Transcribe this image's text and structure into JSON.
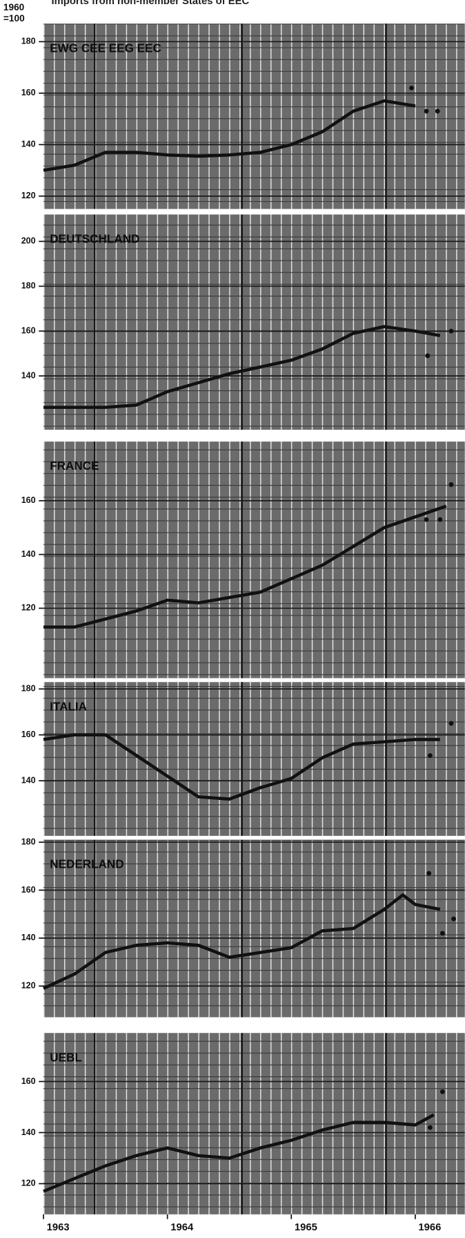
{
  "title": "Imports from non-member States of EEC",
  "ylabel_lines": [
    "1960",
    "=100"
  ],
  "chart_data": [
    {
      "type": "line",
      "title": "EWG CEE EEG EEC",
      "xlim": [
        1963,
        1966.4
      ],
      "ylim": [
        115,
        187
      ],
      "yticks": [
        120,
        140,
        160,
        180
      ],
      "series": [
        {
          "color": "#111111",
          "x": [
            1963,
            1963.25,
            1963.5,
            1963.75,
            1964,
            1964.25,
            1964.5,
            1964.75,
            1965,
            1965.25,
            1965.5,
            1965.75,
            1966
          ],
          "values": [
            130,
            132,
            137,
            137,
            136,
            135.5,
            136,
            137,
            140,
            145,
            153,
            157,
            155
          ]
        }
      ],
      "points": {
        "color": "#111111",
        "x": [
          1965.97,
          1966.09,
          1966.18
        ],
        "values": [
          162,
          153,
          153
        ]
      }
    },
    {
      "type": "line",
      "title": "DEUTSCHLAND",
      "xlim": [
        1963,
        1966.4
      ],
      "ylim": [
        116,
        212
      ],
      "yticks": [
        140,
        160,
        180,
        200
      ],
      "series": [
        {
          "color": "#111111",
          "x": [
            1963,
            1963.25,
            1963.5,
            1963.75,
            1964,
            1964.25,
            1964.5,
            1964.75,
            1965,
            1965.25,
            1965.5,
            1965.75,
            1966,
            1966.2
          ],
          "values": [
            126,
            126,
            126,
            127,
            133,
            137,
            141,
            144,
            147,
            152,
            159,
            162,
            160,
            158
          ]
        }
      ],
      "points": {
        "color": "#111111",
        "x": [
          1966.1,
          1966.29
        ],
        "values": [
          149,
          160
        ]
      }
    },
    {
      "type": "line",
      "title": "FRANCE",
      "xlim": [
        1963,
        1966.4
      ],
      "ylim": [
        94,
        182
      ],
      "yticks": [
        120,
        140,
        160
      ],
      "series": [
        {
          "color": "#111111",
          "x": [
            1963,
            1963.25,
            1963.5,
            1963.75,
            1964,
            1964.25,
            1964.5,
            1964.75,
            1965,
            1965.25,
            1965.5,
            1965.75,
            1966,
            1966.25
          ],
          "values": [
            113,
            113,
            116,
            119,
            123,
            122,
            124,
            126,
            131,
            136,
            143,
            150,
            154,
            158
          ]
        }
      ],
      "points": {
        "color": "#111111",
        "x": [
          1966.09,
          1966.2,
          1966.29
        ],
        "values": [
          153,
          153,
          166
        ]
      }
    },
    {
      "type": "line",
      "title": "ITALIA",
      "xlim": [
        1963,
        1966.4
      ],
      "ylim": [
        116,
        183
      ],
      "yticks": [
        140,
        160,
        180
      ],
      "series": [
        {
          "color": "#111111",
          "x": [
            1963,
            1963.25,
            1963.5,
            1963.75,
            1964,
            1964.25,
            1964.5,
            1964.75,
            1965,
            1965.25,
            1965.5,
            1965.75,
            1966,
            1966.2
          ],
          "values": [
            158,
            160,
            160,
            151,
            142,
            133,
            132,
            137,
            141,
            150,
            156,
            157,
            158,
            158
          ]
        }
      ],
      "points": {
        "color": "#111111",
        "x": [
          1966.12,
          1966.29
        ],
        "values": [
          151,
          165
        ]
      }
    },
    {
      "type": "line",
      "title": "NEDERLAND",
      "xlim": [
        1963,
        1966.4
      ],
      "ylim": [
        107,
        181
      ],
      "yticks": [
        120,
        140,
        160,
        180
      ],
      "series": [
        {
          "color": "#111111",
          "x": [
            1963,
            1963.25,
            1963.5,
            1963.75,
            1964,
            1964.25,
            1964.5,
            1964.75,
            1965,
            1965.25,
            1965.5,
            1965.75,
            1965.9,
            1966,
            1966.2
          ],
          "values": [
            119,
            125,
            134,
            137,
            138,
            137,
            132,
            134,
            136,
            143,
            144,
            152,
            158,
            154,
            152
          ]
        }
      ],
      "points": {
        "color": "#111111",
        "x": [
          1966.11,
          1966.22,
          1966.31
        ],
        "values": [
          167,
          142,
          148
        ]
      }
    },
    {
      "type": "line",
      "title": "UEBL",
      "xlim": [
        1963,
        1966.4
      ],
      "ylim": [
        108,
        179
      ],
      "yticks": [
        120,
        140,
        160
      ],
      "xticks": [
        1963,
        1964,
        1965,
        1966
      ],
      "series": [
        {
          "color": "#111111",
          "x": [
            1963,
            1963.25,
            1963.5,
            1963.75,
            1964,
            1964.25,
            1964.5,
            1964.75,
            1965,
            1965.25,
            1965.5,
            1965.75,
            1966,
            1966.15
          ],
          "values": [
            117,
            122,
            127,
            131,
            134,
            131,
            130,
            134,
            137,
            141,
            144,
            144,
            143,
            147
          ]
        }
      ],
      "points": {
        "color": "#111111",
        "x": [
          1966.12,
          1966.22
        ],
        "values": [
          142,
          156
        ]
      }
    }
  ]
}
